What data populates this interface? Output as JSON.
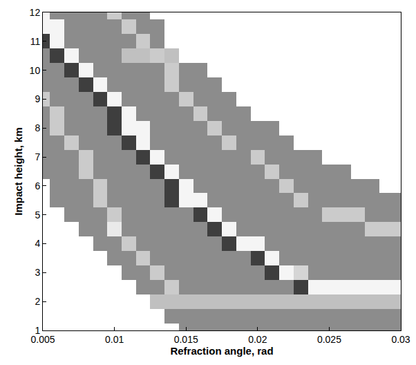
{
  "chart_data": {
    "type": "heatmap",
    "x_label": "Refraction angle, rad",
    "y_label": "Impact height, km",
    "xlim": [
      0.005,
      0.03
    ],
    "ylim": [
      1,
      12
    ],
    "xticks": [
      0.005,
      0.01,
      0.015,
      0.02,
      0.025,
      0.03
    ],
    "yticks": [
      1,
      2,
      3,
      4,
      5,
      6,
      7,
      8,
      9,
      10,
      11,
      12
    ],
    "zlim": [
      0,
      100
    ],
    "x": [
      0.005,
      0.006,
      0.007,
      0.008,
      0.009,
      0.01,
      0.011,
      0.012,
      0.013,
      0.014,
      0.015,
      0.016,
      0.017,
      0.018,
      0.019,
      0.02,
      0.021,
      0.022,
      0.023,
      0.024,
      0.025,
      0.026,
      0.027,
      0.028,
      0.029,
      0.03
    ],
    "y": [
      1,
      1.5,
      2,
      2.5,
      3,
      3.5,
      4,
      4.5,
      5,
      5.5,
      6,
      6.5,
      7,
      7.5,
      8,
      8.5,
      9,
      9.5,
      10,
      10.5,
      11,
      11.5,
      12
    ],
    "z": [
      [
        null,
        null,
        null,
        null,
        null,
        null,
        null,
        null,
        null,
        null,
        45,
        45,
        45,
        45,
        45,
        45,
        45,
        45,
        45,
        45,
        45,
        45,
        45,
        45,
        45,
        45
      ],
      [
        null,
        null,
        null,
        null,
        null,
        null,
        null,
        null,
        null,
        45,
        45,
        45,
        45,
        45,
        45,
        45,
        45,
        45,
        45,
        45,
        45,
        45,
        45,
        45,
        45,
        45
      ],
      [
        null,
        null,
        null,
        null,
        null,
        null,
        null,
        null,
        70,
        70,
        70,
        70,
        70,
        70,
        70,
        70,
        70,
        70,
        70,
        70,
        70,
        70,
        70,
        70,
        70,
        70
      ],
      [
        null,
        null,
        null,
        null,
        null,
        null,
        null,
        45,
        45,
        75,
        45,
        45,
        45,
        45,
        45,
        45,
        45,
        45,
        20,
        95,
        95,
        95,
        95,
        95,
        95,
        95
      ],
      [
        null,
        null,
        null,
        null,
        null,
        null,
        45,
        45,
        75,
        45,
        45,
        45,
        45,
        45,
        45,
        45,
        20,
        95,
        80,
        45,
        45,
        45,
        45,
        45,
        45,
        45
      ],
      [
        null,
        null,
        null,
        null,
        null,
        45,
        45,
        75,
        45,
        45,
        45,
        45,
        45,
        45,
        45,
        20,
        95,
        45,
        45,
        45,
        45,
        45,
        45,
        45,
        45,
        45
      ],
      [
        null,
        null,
        null,
        null,
        45,
        45,
        75,
        45,
        45,
        45,
        45,
        45,
        45,
        20,
        95,
        95,
        45,
        45,
        45,
        45,
        45,
        45,
        45,
        45,
        45,
        45
      ],
      [
        null,
        null,
        null,
        45,
        45,
        90,
        45,
        45,
        45,
        45,
        45,
        45,
        20,
        95,
        45,
        45,
        45,
        45,
        45,
        45,
        45,
        45,
        45,
        75,
        75,
        75
      ],
      [
        null,
        null,
        45,
        45,
        45,
        75,
        45,
        45,
        45,
        45,
        45,
        20,
        95,
        45,
        45,
        45,
        45,
        45,
        45,
        45,
        75,
        75,
        75,
        45,
        45,
        45
      ],
      [
        null,
        45,
        45,
        45,
        75,
        45,
        45,
        45,
        45,
        20,
        95,
        95,
        45,
        45,
        45,
        45,
        45,
        45,
        75,
        45,
        45,
        45,
        45,
        45,
        45,
        45
      ],
      [
        null,
        45,
        45,
        45,
        75,
        45,
        45,
        45,
        45,
        20,
        95,
        45,
        45,
        45,
        45,
        45,
        45,
        75,
        45,
        45,
        45,
        45,
        45,
        45,
        null,
        null
      ],
      [
        45,
        45,
        45,
        75,
        45,
        45,
        45,
        45,
        20,
        95,
        45,
        45,
        45,
        45,
        45,
        45,
        75,
        45,
        45,
        45,
        45,
        45,
        null,
        null,
        null,
        null
      ],
      [
        45,
        45,
        45,
        75,
        45,
        45,
        45,
        20,
        95,
        45,
        45,
        45,
        45,
        45,
        45,
        75,
        45,
        45,
        45,
        45,
        null,
        null,
        null,
        null,
        null,
        null
      ],
      [
        45,
        45,
        75,
        45,
        45,
        45,
        20,
        95,
        45,
        45,
        45,
        45,
        45,
        75,
        45,
        45,
        45,
        45,
        null,
        null,
        null,
        null,
        null,
        null,
        null,
        null
      ],
      [
        45,
        75,
        45,
        45,
        45,
        20,
        95,
        95,
        45,
        45,
        45,
        45,
        75,
        45,
        45,
        45,
        45,
        null,
        null,
        null,
        null,
        null,
        null,
        null,
        null,
        null
      ],
      [
        45,
        75,
        45,
        45,
        45,
        20,
        95,
        45,
        45,
        45,
        45,
        75,
        45,
        45,
        45,
        null,
        null,
        null,
        null,
        null,
        null,
        null,
        null,
        null,
        null,
        null
      ],
      [
        75,
        45,
        45,
        45,
        20,
        95,
        45,
        45,
        45,
        45,
        75,
        45,
        45,
        45,
        null,
        null,
        null,
        null,
        null,
        null,
        null,
        null,
        null,
        null,
        null,
        null
      ],
      [
        45,
        45,
        45,
        20,
        95,
        45,
        45,
        45,
        45,
        75,
        45,
        45,
        45,
        null,
        null,
        null,
        null,
        null,
        null,
        null,
        null,
        null,
        null,
        null,
        null,
        null
      ],
      [
        45,
        45,
        20,
        95,
        45,
        45,
        45,
        45,
        45,
        75,
        45,
        45,
        null,
        null,
        null,
        null,
        null,
        null,
        null,
        null,
        null,
        null,
        null,
        null,
        null,
        null
      ],
      [
        45,
        20,
        95,
        45,
        45,
        45,
        70,
        70,
        75,
        70,
        null,
        null,
        null,
        null,
        null,
        null,
        null,
        null,
        null,
        null,
        null,
        null,
        null,
        null,
        null,
        null
      ],
      [
        20,
        95,
        45,
        45,
        45,
        45,
        45,
        75,
        45,
        null,
        null,
        null,
        null,
        null,
        null,
        null,
        null,
        null,
        null,
        null,
        null,
        null,
        null,
        null,
        null,
        null
      ],
      [
        95,
        95,
        45,
        45,
        45,
        45,
        75,
        45,
        45,
        null,
        null,
        null,
        null,
        null,
        null,
        null,
        null,
        null,
        null,
        null,
        null,
        null,
        null,
        null,
        null,
        null
      ],
      [
        95,
        45,
        45,
        45,
        45,
        75,
        45,
        45,
        null,
        null,
        null,
        null,
        null,
        null,
        null,
        null,
        null,
        null,
        null,
        null,
        null,
        null,
        null,
        null,
        null,
        null
      ]
    ]
  }
}
